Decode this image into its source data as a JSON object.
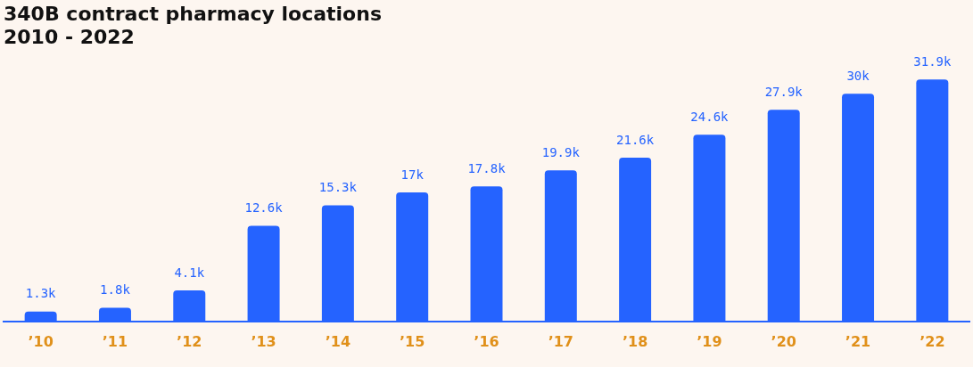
{
  "chart_data": {
    "type": "bar",
    "title": "340B contract pharmacy locations\n2010 - 2022",
    "categories": [
      "’10",
      "’11",
      "’12",
      "’13",
      "’14",
      "’15",
      "’16",
      "’17",
      "’18",
      "’19",
      "’20",
      "’21",
      "’22"
    ],
    "values": [
      1300,
      1800,
      4100,
      12600,
      15300,
      17000,
      17800,
      19900,
      21600,
      24600,
      27900,
      30000,
      31900
    ],
    "value_labels": [
      "1.3k",
      "1.8k",
      "4.1k",
      "12.6k",
      "15.3k",
      "17k",
      "17.8k",
      "19.9k",
      "21.6k",
      "24.6k",
      "27.9k",
      "30k",
      "31.9k"
    ],
    "color": "#2563ff",
    "grid": false,
    "legend": false
  }
}
